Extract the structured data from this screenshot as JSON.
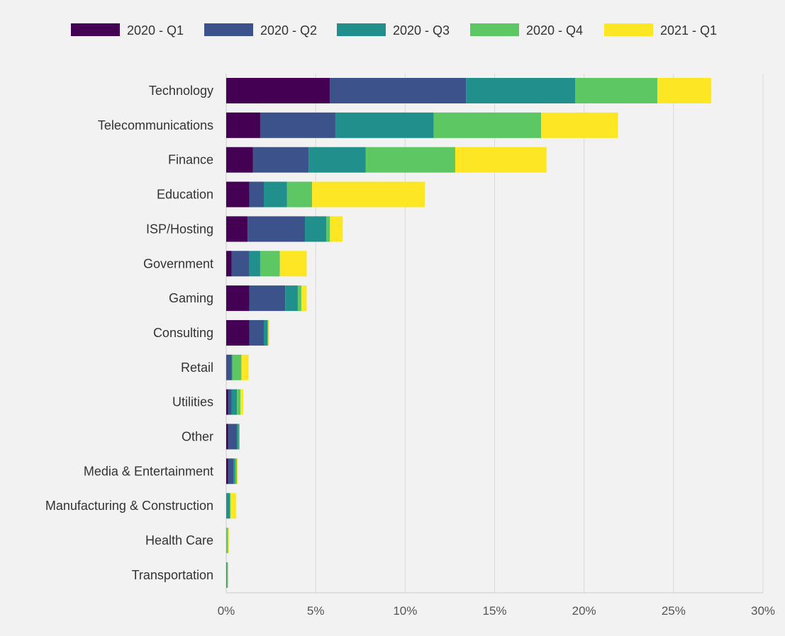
{
  "chart_data": {
    "type": "bar",
    "orientation": "horizontal",
    "stacked": true,
    "categories": [
      "Technology",
      "Telecommunications",
      "Finance",
      "Education",
      "ISP/Hosting",
      "Government",
      "Gaming",
      "Consulting",
      "Retail",
      "Utilities",
      "Other",
      "Media & Entertainment",
      "Manufacturing & Construction",
      "Health Care",
      "Transportation"
    ],
    "series": [
      {
        "name": "2020 - Q1",
        "color": "#440154",
        "values": [
          5.8,
          1.9,
          1.5,
          1.3,
          1.2,
          0.3,
          1.3,
          1.3,
          0.0,
          0.1,
          0.1,
          0.1,
          0.0,
          0.0,
          0.0
        ]
      },
      {
        "name": "2020 - Q2",
        "color": "#3b528b",
        "values": [
          7.6,
          4.2,
          3.1,
          0.8,
          3.2,
          1.0,
          2.0,
          0.8,
          0.3,
          0.2,
          0.5,
          0.3,
          0.0,
          0.0,
          0.0
        ]
      },
      {
        "name": "2020 - Q3",
        "color": "#21908d",
        "values": [
          6.1,
          5.5,
          3.2,
          1.3,
          1.2,
          0.6,
          0.7,
          0.2,
          0.05,
          0.3,
          0.1,
          0.1,
          0.2,
          0.0,
          0.05
        ]
      },
      {
        "name": "2020 - Q4",
        "color": "#5dc863",
        "values": [
          4.6,
          6.0,
          5.0,
          1.4,
          0.2,
          1.1,
          0.2,
          0.05,
          0.5,
          0.2,
          0.05,
          0.1,
          0.05,
          0.1,
          0.05
        ]
      },
      {
        "name": "2021 - Q1",
        "color": "#fde725",
        "values": [
          3.0,
          4.3,
          5.1,
          6.3,
          0.7,
          1.5,
          0.3,
          0.05,
          0.4,
          0.15,
          0.0,
          0.05,
          0.3,
          0.05,
          0.0
        ]
      }
    ],
    "xlim": [
      0,
      30
    ],
    "xticks": [
      0,
      5,
      10,
      15,
      20,
      25,
      30
    ],
    "xtick_labels": [
      "0%",
      "5%",
      "10%",
      "15%",
      "20%",
      "25%",
      "30%"
    ],
    "legend_position": "top",
    "grid": "vertical",
    "title": "",
    "xlabel": "",
    "ylabel": ""
  }
}
